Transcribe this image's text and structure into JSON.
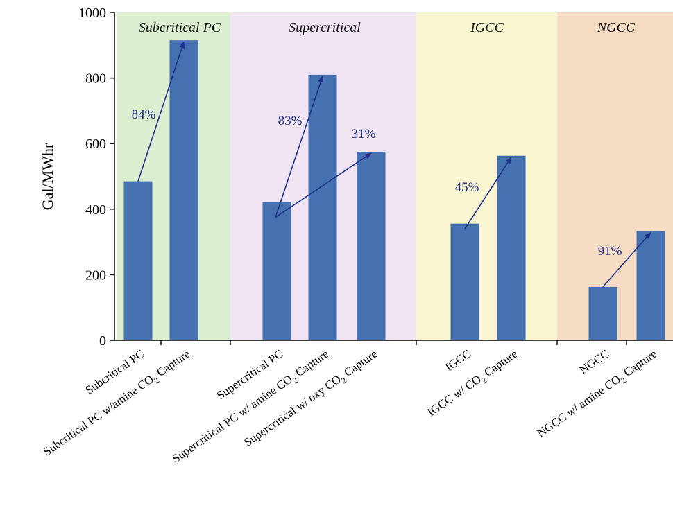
{
  "chart_data": {
    "type": "bar",
    "ylabel": "Gal/MWhr",
    "ylim": [
      0,
      1000
    ],
    "yticks": [
      "0",
      "200",
      "400",
      "600",
      "800",
      "1000"
    ],
    "categories": [
      {
        "label": "Subcritical PC",
        "sub": ""
      },
      {
        "label": "Subcritical PC w/amine CO",
        "sub": "2",
        "tail": " Capture"
      },
      {
        "label": "Supercritical PC",
        "sub": ""
      },
      {
        "label": "Supercritical PC w/ amine CO",
        "sub": "2",
        "tail": " Capture"
      },
      {
        "label": "Supercritical w/ oxy CO",
        "sub": "2",
        "tail": " Capture"
      },
      {
        "label": "IGCC",
        "sub": ""
      },
      {
        "label": "IGCC w/ CO",
        "sub": "2",
        "tail": " Capture"
      },
      {
        "label": "NGCC",
        "sub": ""
      },
      {
        "label": "NGCC w/ amine CO",
        "sub": "2",
        "tail": " Capture"
      }
    ],
    "values": [
      485,
      915,
      422,
      810,
      575,
      356,
      563,
      163,
      333
    ],
    "groups": [
      {
        "name": "Subcritical  PC",
        "color": "#dcefd0"
      },
      {
        "name": "Supercritical",
        "color": "#f1e4f3"
      },
      {
        "name": "IGCC",
        "color": "#f8f5d0"
      },
      {
        "name": "NGCC",
        "color": "#f5dcc3"
      }
    ],
    "annotations": [
      {
        "text": "84%",
        "from_index": 0,
        "to_index": 1,
        "from_value": 485,
        "to_value": 915
      },
      {
        "text": "83%",
        "from_index": 2,
        "to_index": 3,
        "from_value": 375,
        "to_value": 810
      },
      {
        "text": "31%",
        "from_index": 2,
        "to_index": 4,
        "from_value": 375,
        "to_value": 575
      },
      {
        "text": "45%",
        "from_index": 5,
        "to_index": 6,
        "from_value": 340,
        "to_value": 563
      },
      {
        "text": "91%",
        "from_index": 7,
        "to_index": 8,
        "from_value": 163,
        "to_value": 333
      }
    ],
    "colors": {
      "bar": "#4571b0",
      "arrow": "#1f2f8a"
    }
  }
}
